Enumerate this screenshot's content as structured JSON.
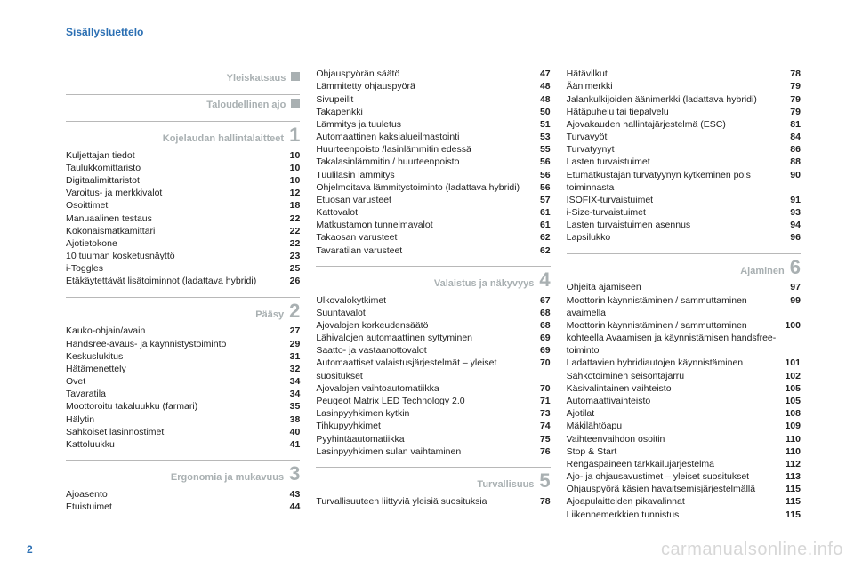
{
  "header": "Sisällysluettelo",
  "page_number": "2",
  "watermark": "carmanualsonline.info",
  "columns": [
    [
      {
        "type": "section",
        "title": "Yleiskatsaus",
        "marker": "square",
        "first": true
      },
      {
        "type": "section",
        "title": "Taloudellinen ajo",
        "marker": "square"
      },
      {
        "type": "section",
        "title": "Kojelaudan hallintalaitteet",
        "marker": "1"
      },
      {
        "type": "entry",
        "label": "Kuljettajan tiedot",
        "page": "10"
      },
      {
        "type": "entry",
        "label": "Taulukkomittaristo",
        "page": "10"
      },
      {
        "type": "entry",
        "label": "Digitaalimittaristot",
        "page": "10"
      },
      {
        "type": "entry",
        "label": "Varoitus- ja merkkivalot",
        "page": "12"
      },
      {
        "type": "entry",
        "label": "Osoittimet",
        "page": "18"
      },
      {
        "type": "entry",
        "label": "Manuaalinen testaus",
        "page": "22"
      },
      {
        "type": "entry",
        "label": "Kokonaismatkamittari",
        "page": "22"
      },
      {
        "type": "entry",
        "label": "Ajotietokone",
        "page": "22"
      },
      {
        "type": "entry",
        "label": "10 tuuman kosketusnäyttö",
        "page": "23"
      },
      {
        "type": "entry",
        "label": "i-Toggles",
        "page": "25"
      },
      {
        "type": "entry",
        "label": "Etäkäytettävät lisätoiminnot (ladattava hybridi)",
        "page": "26"
      },
      {
        "type": "section",
        "title": "Pääsy",
        "marker": "2"
      },
      {
        "type": "entry",
        "label": "Kauko-ohjain/avain",
        "page": "27"
      },
      {
        "type": "entry",
        "label": "Handsree-avaus- ja käynnistystoiminto",
        "page": "29"
      },
      {
        "type": "entry",
        "label": "Keskuslukitus",
        "page": "31"
      },
      {
        "type": "entry",
        "label": "Hätämenettely",
        "page": "32"
      },
      {
        "type": "entry",
        "label": "Ovet",
        "page": "34"
      },
      {
        "type": "entry",
        "label": "Tavaratila",
        "page": "34"
      },
      {
        "type": "entry",
        "label": "Moottoroitu takaluukku (farmari)",
        "page": "35"
      },
      {
        "type": "entry",
        "label": "Hälytin",
        "page": "38"
      },
      {
        "type": "entry",
        "label": "Sähköiset lasinnostimet",
        "page": "40"
      },
      {
        "type": "entry",
        "label": "Kattoluukku",
        "page": "41"
      },
      {
        "type": "section",
        "title": "Ergonomia ja mukavuus",
        "marker": "3"
      },
      {
        "type": "entry",
        "label": "Ajoasento",
        "page": "43"
      },
      {
        "type": "entry",
        "label": "Etuistuimet",
        "page": "44"
      }
    ],
    [
      {
        "type": "entry",
        "label": "Ohjauspyörän säätö",
        "page": "47"
      },
      {
        "type": "entry",
        "label": "Lämmitetty ohjauspyörä",
        "page": "48"
      },
      {
        "type": "entry",
        "label": "Sivupeilit",
        "page": "48"
      },
      {
        "type": "entry",
        "label": "Takapenkki",
        "page": "50"
      },
      {
        "type": "entry",
        "label": "Lämmitys ja tuuletus",
        "page": "51"
      },
      {
        "type": "entry",
        "label": "Automaattinen kaksialueilmastointi",
        "page": "53"
      },
      {
        "type": "entry",
        "label": "Huurteenpoisto /lasinlämmitin edessä",
        "page": "55"
      },
      {
        "type": "entry",
        "label": "Takalasinlämmitin / huurteenpoisto",
        "page": "56"
      },
      {
        "type": "entry",
        "label": "Tuulilasin lämmitys",
        "page": "56"
      },
      {
        "type": "entry",
        "label": "Ohjelmoitava lämmitystoiminto (ladattava hybridi)",
        "page": "56"
      },
      {
        "type": "entry",
        "label": "Etuosan varusteet",
        "page": "57"
      },
      {
        "type": "entry",
        "label": "Kattovalot",
        "page": "61"
      },
      {
        "type": "entry",
        "label": "Matkustamon tunnelmavalot",
        "page": "61"
      },
      {
        "type": "entry",
        "label": "Takaosan varusteet",
        "page": "62"
      },
      {
        "type": "entry",
        "label": "Tavaratilan varusteet",
        "page": "62"
      },
      {
        "type": "section",
        "title": "Valaistus ja näkyvyys",
        "marker": "4"
      },
      {
        "type": "entry",
        "label": "Ulkovalokytkimet",
        "page": "67"
      },
      {
        "type": "entry",
        "label": "Suuntavalot",
        "page": "68"
      },
      {
        "type": "entry",
        "label": "Ajovalojen korkeudensäätö",
        "page": "68"
      },
      {
        "type": "entry",
        "label": "Lähivalojen automaattinen syttyminen",
        "page": "69"
      },
      {
        "type": "entry",
        "label": "Saatto- ja vastaanottovalot",
        "page": "69"
      },
      {
        "type": "entry",
        "label": "Automaattiset valaistusjärjestelmät – yleiset suositukset",
        "page": "70"
      },
      {
        "type": "entry",
        "label": "Ajovalojen vaihtoautomatiikka",
        "page": "70"
      },
      {
        "type": "entry",
        "label": "Peugeot Matrix LED Technology 2.0",
        "page": "71"
      },
      {
        "type": "entry",
        "label": "Lasinpyyhkimen kytkin",
        "page": "73"
      },
      {
        "type": "entry",
        "label": "Tihkupyyhkimet",
        "page": "74"
      },
      {
        "type": "entry",
        "label": "Pyyhintäautomatiikka",
        "page": "75"
      },
      {
        "type": "entry",
        "label": "Lasinpyyhkimen sulan vaihtaminen",
        "page": "76"
      },
      {
        "type": "section",
        "title": "Turvallisuus",
        "marker": "5"
      },
      {
        "type": "entry",
        "label": "Turvallisuuteen liittyviä yleisiä suosituksia",
        "page": "78"
      }
    ],
    [
      {
        "type": "entry",
        "label": "Hätävilkut",
        "page": "78"
      },
      {
        "type": "entry",
        "label": "Äänimerkki",
        "page": "79"
      },
      {
        "type": "entry",
        "label": "Jalankulkijoiden äänimerkki (ladattava hybridi)",
        "page": "79"
      },
      {
        "type": "entry",
        "label": "Hätäpuhelu tai tiepalvelu",
        "page": "79"
      },
      {
        "type": "entry",
        "label": "Ajovakauden hallintajärjestelmä (ESC)",
        "page": "81"
      },
      {
        "type": "entry",
        "label": "Turvavyöt",
        "page": "84"
      },
      {
        "type": "entry",
        "label": "Turvatyynyt",
        "page": "86"
      },
      {
        "type": "entry",
        "label": "Lasten turvaistuimet",
        "page": "88"
      },
      {
        "type": "entry",
        "label": "Etumatkustajan turvatyynyn kytkeminen pois toiminnasta",
        "page": "90"
      },
      {
        "type": "entry",
        "label": "ISOFIX-turvaistuimet",
        "page": "91"
      },
      {
        "type": "entry",
        "label": "i-Size-turvaistuimet",
        "page": "93"
      },
      {
        "type": "entry",
        "label": "Lasten turvaistuimen asennus",
        "page": "94"
      },
      {
        "type": "entry",
        "label": "Lapsilukko",
        "page": "96"
      },
      {
        "type": "section",
        "title": "Ajaminen",
        "marker": "6"
      },
      {
        "type": "entry",
        "label": "Ohjeita ajamiseen",
        "page": "97"
      },
      {
        "type": "entry",
        "label": "Moottorin käynnistäminen / sammuttaminen avaimella",
        "page": "99"
      },
      {
        "type": "entry",
        "label": "Moottorin käynnistäminen / sammuttaminen kohteella Avaamisen ja käynnistämisen handsfree-toiminto",
        "page": "100"
      },
      {
        "type": "entry",
        "label": "Ladattavien hybridiautojen käynnistäminen",
        "page": "101"
      },
      {
        "type": "entry",
        "label": "Sähkötoiminen seisontajarru",
        "page": "102"
      },
      {
        "type": "entry",
        "label": "Käsivalintainen vaihteisto",
        "page": "105"
      },
      {
        "type": "entry",
        "label": "Automaattivaihteisto",
        "page": "105"
      },
      {
        "type": "entry",
        "label": "Ajotilat",
        "page": "108"
      },
      {
        "type": "entry",
        "label": "Mäkilähtöapu",
        "page": "109"
      },
      {
        "type": "entry",
        "label": "Vaihteenvaihdon osoitin",
        "page": "110"
      },
      {
        "type": "entry",
        "label": "Stop & Start",
        "page": "110"
      },
      {
        "type": "entry",
        "label": "Rengaspaineen tarkkailujärjestelmä",
        "page": "112"
      },
      {
        "type": "entry",
        "label": "Ajo- ja ohjausavustimet – yleiset suositukset",
        "page": "113"
      },
      {
        "type": "entry",
        "label": "Ohjauspyörä käsien havaitsemisjärjestelmällä",
        "page": "115"
      },
      {
        "type": "entry",
        "label": "Ajoapulaitteiden pikavalinnat",
        "page": "115"
      },
      {
        "type": "entry",
        "label": "Liikennemerkkien tunnistus",
        "page": "115"
      }
    ]
  ]
}
